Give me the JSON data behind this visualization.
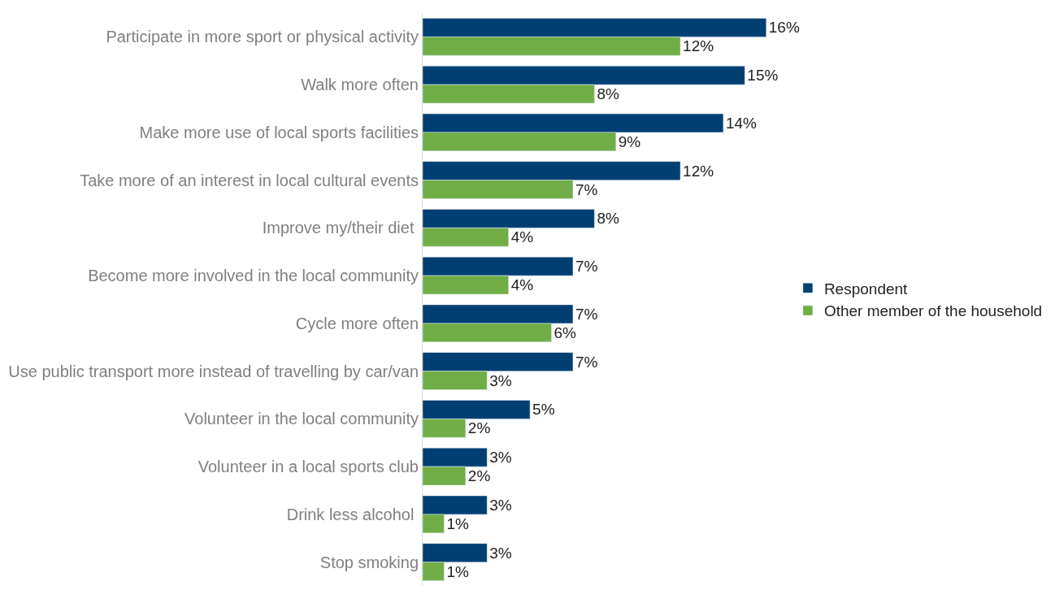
{
  "chart_data": {
    "type": "bar",
    "orientation": "horizontal",
    "categories": [
      "Participate in more sport or physical activity",
      "Walk more often",
      "Make more use of local sports facilities",
      "Take more of an interest in local cultural events",
      "Improve my/their diet ",
      "Become more involved in the local community",
      "Cycle more often",
      "Use public transport more instead of travelling by car/van",
      "Volunteer in the local community",
      "Volunteer in a local sports club",
      "Drink less alcohol ",
      "Stop smoking"
    ],
    "series": [
      {
        "name": "Respondent",
        "color": "#003f72",
        "values": [
          16,
          15,
          14,
          12,
          8,
          7,
          7,
          7,
          5,
          3,
          3,
          3
        ],
        "value_labels": [
          "16%",
          "15%",
          "14%",
          "12%",
          "8%",
          "7%",
          "7%",
          "7%",
          "5%",
          "3%",
          "3%",
          "3%"
        ]
      },
      {
        "name": "Other member of the household",
        "color": "#70ad47",
        "values": [
          12,
          8,
          9,
          7,
          4,
          4,
          6,
          3,
          2,
          2,
          1,
          1
        ],
        "value_labels": [
          "12%",
          "8%",
          "9%",
          "7%",
          "4%",
          "4%",
          "6%",
          "3%",
          "2%",
          "2%",
          "1%",
          "1%"
        ]
      }
    ],
    "legend": "right",
    "tick_labels": "y"
  }
}
